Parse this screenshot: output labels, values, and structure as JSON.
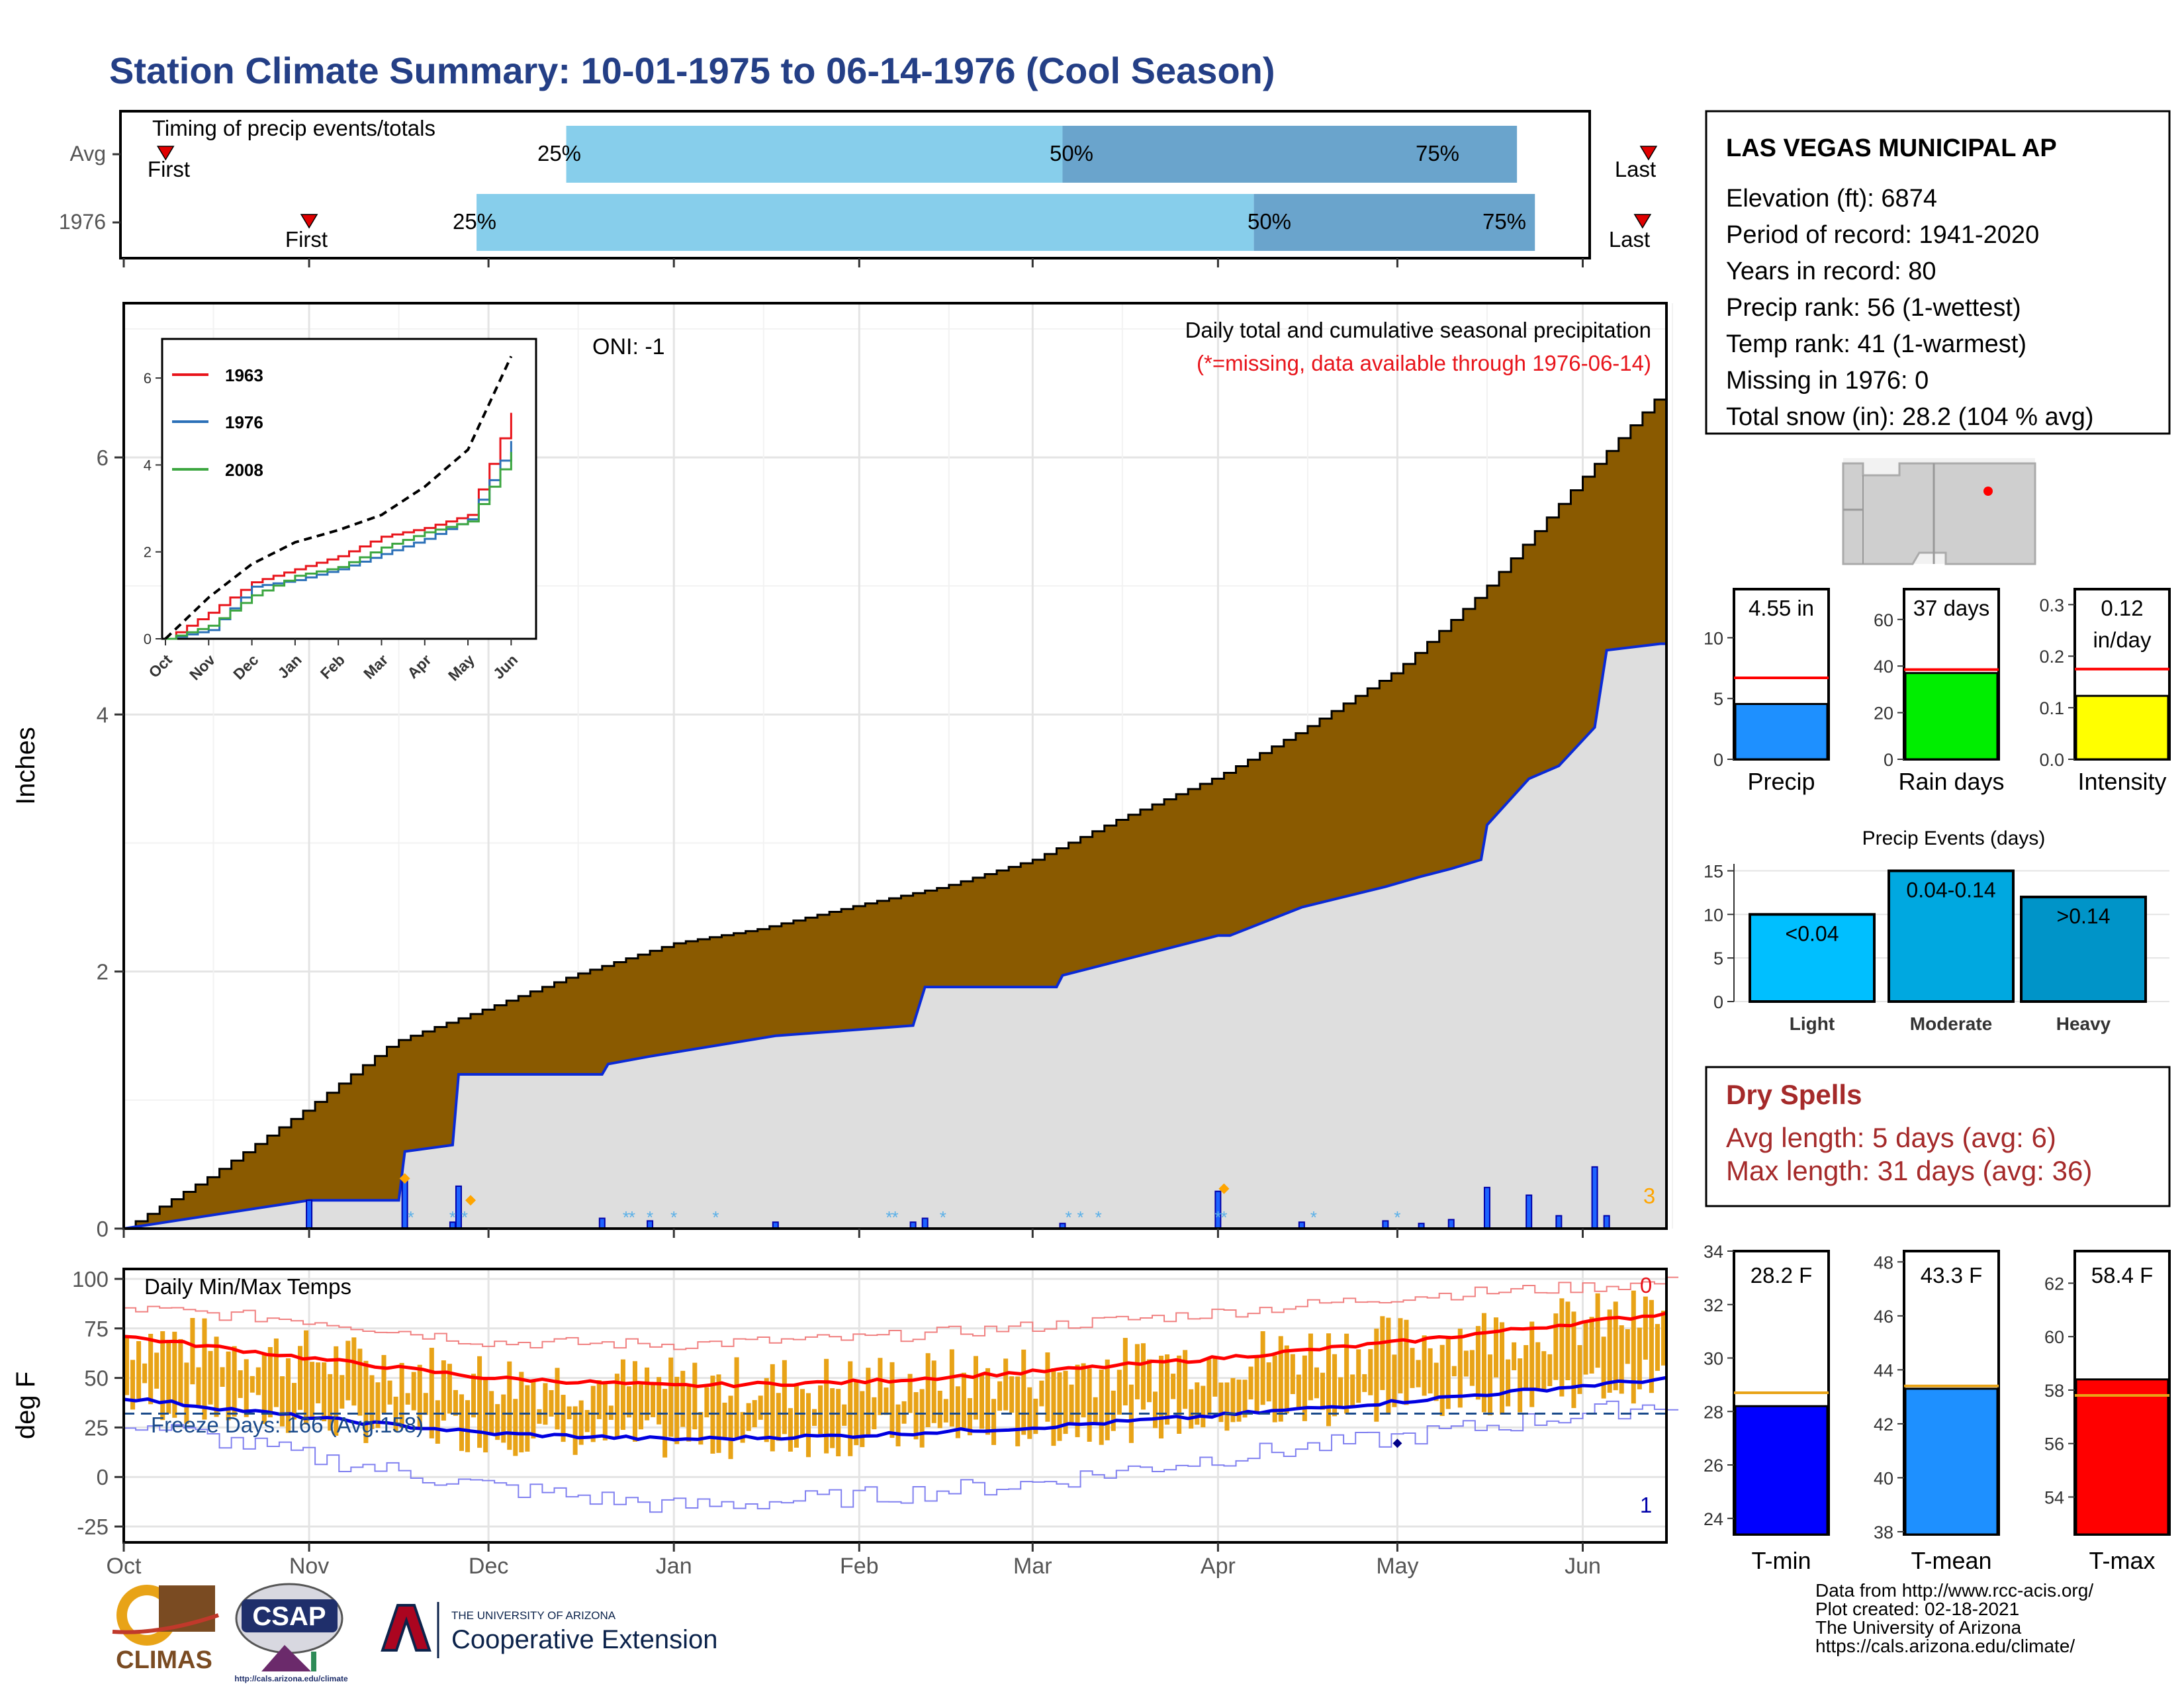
{
  "title": "Station Climate Summary: 10-01-1975 to 06-14-1976 (Cool Season)",
  "colors": {
    "title": "#243f86",
    "red": "#e8141b",
    "blue": "#0a2ad6",
    "brown": "#8a5a00",
    "gray": "#dedede",
    "lightblue": "#87ceeb",
    "midblue": "#6aa4cc",
    "orange": "#e8a317",
    "green": "#00ee00",
    "yellow": "#ffff00",
    "dryred": "#a52a2a"
  },
  "timing": {
    "title": "Timing of precip events/totals",
    "rows": [
      {
        "label": "Avg",
        "first": "First",
        "last": "Last",
        "p25": "25%",
        "p50": "50%",
        "p75": "75%",
        "first_date": "1975-10-08",
        "q25": "1975-12-14",
        "q50": "1976-03-06",
        "q75": "1976-05-21",
        "last_date": "1976-06-12"
      },
      {
        "label": "1976",
        "first": "First",
        "last": "Last",
        "p25": "25%",
        "p50": "50%",
        "p75": "75%",
        "first_date": "1975-11-01",
        "q25": "1975-11-29",
        "q50": "1976-04-07",
        "q75": "1976-05-24",
        "last_date": "1976-06-11"
      }
    ]
  },
  "precip_panel": {
    "ylabel": "Inches",
    "oni": "ONI: -1",
    "subtitle": "Daily total and cumulative seasonal precipitation",
    "missing_note": "(*=missing, data available through 1976-06-14)",
    "corner_count": "3",
    "yticks": [
      "0",
      "2",
      "4",
      "6"
    ]
  },
  "inset": {
    "yticks": [
      "0",
      "2",
      "4",
      "6"
    ],
    "xticks": [
      "Oct",
      "Nov",
      "Dec",
      "Jan",
      "Feb",
      "Mar",
      "Apr",
      "May",
      "Jun"
    ],
    "legend": [
      "1963",
      "1976",
      "2008"
    ]
  },
  "temp_panel": {
    "ylabel": "deg F",
    "title": "Daily Min/Max Temps",
    "freeze": "Freeze Days: 166 (Avg:158)",
    "top_count": "0",
    "bottom_count": "1",
    "yticks": [
      "100",
      "75",
      "50",
      "25",
      "0",
      "-25"
    ]
  },
  "months": [
    "Oct",
    "Nov",
    "Dec",
    "Jan",
    "Feb",
    "Mar",
    "Apr",
    "May",
    "Jun"
  ],
  "station": {
    "name": "LAS VEGAS MUNICIPAL AP",
    "lines": [
      "Elevation (ft): 6874",
      "Period of record: 1941-2020",
      "Years in record: 80",
      "Precip rank: 56 (1-wettest)",
      "Temp rank: 41 (1-warmest)",
      "Missing in 1976: 0",
      "Total snow (in): 28.2 (104 % avg)"
    ]
  },
  "summary_bars": [
    {
      "label": "Precip",
      "value_text": "4.55 in",
      "value": 4.55,
      "avg": 6.7,
      "ymax": 14,
      "ticks": [
        "0",
        "5",
        "10"
      ],
      "tickvals": [
        0,
        5,
        10
      ],
      "color": "#1e90ff"
    },
    {
      "label": "Rain days",
      "value_text": "37 days",
      "value": 37,
      "avg": 38.5,
      "ymax": 73,
      "ticks": [
        "0",
        "20",
        "40",
        "60"
      ],
      "tickvals": [
        0,
        20,
        40,
        60
      ],
      "color": "#00ee00"
    },
    {
      "label": "Intensity",
      "value_text": "0.12 in/day",
      "value": 0.123,
      "avg": 0.175,
      "ymax": 0.33,
      "ticks": [
        "0.0",
        "0.1",
        "0.2",
        "0.3"
      ],
      "tickvals": [
        0,
        0.1,
        0.2,
        0.3
      ],
      "color": "#ffff00"
    }
  ],
  "events": {
    "title": "Precip Events (days)",
    "categories": [
      "Light",
      "Moderate",
      "Heavy"
    ],
    "labels": [
      "<0.04",
      "0.04-0.14",
      ">0.14"
    ],
    "values": [
      10,
      15,
      12
    ],
    "colors": [
      "#00bfff",
      "#00a8e0",
      "#0094c8"
    ],
    "ticks": [
      "0",
      "5",
      "10",
      "15"
    ]
  },
  "dry_spells": {
    "title": "Dry Spells",
    "avg": "Avg length: 5 days (avg: 6)",
    "max": "Max length: 31 days (avg: 36)"
  },
  "temp_bars": [
    {
      "label": "T-min",
      "value_text": "28.2 F",
      "value": 28.2,
      "avg": 28.7,
      "ymin": 23.4,
      "ymax": 34.0,
      "ticks": [
        "24",
        "26",
        "28",
        "30",
        "32",
        "34"
      ],
      "tickvals": [
        24,
        26,
        28,
        30,
        32,
        34
      ],
      "color": "#0000ff"
    },
    {
      "label": "T-mean",
      "value_text": "43.3 F",
      "value": 43.3,
      "avg": 43.4,
      "ymin": 37.9,
      "ymax": 48.4,
      "ticks": [
        "38",
        "40",
        "42",
        "44",
        "46",
        "48"
      ],
      "tickvals": [
        38,
        40,
        42,
        44,
        46,
        48
      ],
      "color": "#1e90ff"
    },
    {
      "label": "T-max",
      "value_text": "58.4 F",
      "value": 58.4,
      "avg": 57.8,
      "ymin": 52.6,
      "ymax": 63.2,
      "ticks": [
        "54",
        "56",
        "58",
        "60",
        "62"
      ],
      "tickvals": [
        54,
        56,
        58,
        60,
        62
      ],
      "color": "#ff0000"
    }
  ],
  "footer": {
    "credits": [
      "Data from http://www.rcc-acis.org/",
      "Plot created: 02-18-2021",
      "The University of Arizona",
      "https://cals.arizona.edu/climate/"
    ],
    "climas": "CLIMAS",
    "csap": "CSAP",
    "csap_url": "http://cals.arizona.edu/climate",
    "ua_small": "THE UNIVERSITY OF ARIZONA",
    "ua_big": "Cooperative Extension"
  },
  "chart_data": {
    "type": "area",
    "title": "Station Climate Summary: 10-01-1975 to 06-14-1976 (Cool Season)",
    "ylabel": "Inches",
    "xlim": [
      "1975-10-01",
      "1976-06-14"
    ],
    "ylim": [
      0,
      7.2
    ],
    "series": [
      {
        "name": "avg cumulative (brown)",
        "x": [
          "1975-10-01",
          "1975-10-15",
          "1975-11-01",
          "1975-11-15",
          "1975-12-01",
          "1975-12-15",
          "1976-01-01",
          "1976-01-15",
          "1976-02-01",
          "1976-02-15",
          "1976-03-01",
          "1976-03-15",
          "1976-04-01",
          "1976-04-15",
          "1976-05-01",
          "1976-05-15",
          "1976-06-01",
          "1976-06-14"
        ],
        "values": [
          0,
          0.4,
          0.95,
          1.45,
          1.72,
          1.97,
          2.22,
          2.33,
          2.52,
          2.66,
          2.87,
          3.18,
          3.52,
          3.88,
          4.35,
          4.95,
          5.85,
          6.5
        ]
      },
      {
        "name": "1976 cumulative",
        "x": [
          "1975-10-01",
          "1975-11-01",
          "1975-11-16",
          "1975-11-17",
          "1975-11-25",
          "1975-11-26",
          "1975-12-20",
          "1975-12-21",
          "1975-12-28",
          "1976-01-18",
          "1976-02-10",
          "1976-02-12",
          "1976-03-05",
          "1976-03-06",
          "1976-04-01",
          "1976-04-03",
          "1976-04-15",
          "1976-04-29",
          "1976-05-05",
          "1976-05-10",
          "1976-05-15",
          "1976-05-16",
          "1976-05-23",
          "1976-05-28",
          "1976-06-03",
          "1976-06-05",
          "1976-06-14"
        ],
        "values": [
          0,
          0.22,
          0.22,
          0.6,
          0.65,
          1.2,
          1.2,
          1.28,
          1.34,
          1.5,
          1.58,
          1.88,
          1.88,
          1.97,
          2.28,
          2.28,
          2.5,
          2.66,
          2.74,
          2.8,
          2.87,
          3.14,
          3.5,
          3.6,
          3.9,
          4.5,
          4.55
        ]
      }
    ],
    "daily_precip": {
      "dates": [
        "1975-11-01",
        "1975-11-17",
        "1975-11-25",
        "1975-11-26",
        "1975-12-20",
        "1975-12-28",
        "1976-01-18",
        "1976-02-10",
        "1976-02-12",
        "1976-03-06",
        "1976-04-01",
        "1976-04-15",
        "1976-04-29",
        "1976-05-05",
        "1976-05-10",
        "1976-05-16",
        "1976-05-23",
        "1976-05-28",
        "1976-06-03",
        "1976-06-05"
      ],
      "values": [
        0.22,
        0.38,
        0.05,
        0.33,
        0.08,
        0.06,
        0.05,
        0.05,
        0.08,
        0.04,
        0.29,
        0.05,
        0.06,
        0.04,
        0.07,
        0.32,
        0.26,
        0.1,
        0.48,
        0.1
      ]
    },
    "temp_normals": {
      "x_months": [
        "Oct",
        "Nov",
        "Dec",
        "Jan",
        "Feb",
        "Mar",
        "Apr",
        "May",
        "Jun"
      ],
      "avg_max": [
        71,
        60,
        50,
        46,
        48,
        53,
        60,
        68,
        78
      ],
      "avg_min": [
        40,
        30,
        22,
        19,
        21,
        25,
        31,
        38,
        46
      ],
      "record_max": [
        85,
        79,
        68,
        67,
        70,
        76,
        83,
        91,
        96
      ],
      "record_min": [
        28,
        10,
        -5,
        -15,
        -10,
        -3,
        10,
        20,
        32
      ],
      "freeze_line": 32
    },
    "inset": {
      "type": "line",
      "xticks": [
        "Oct",
        "Nov",
        "Dec",
        "Jan",
        "Feb",
        "Mar",
        "Apr",
        "May",
        "Jun"
      ],
      "series": [
        {
          "name": "1963",
          "values": [
            0,
            0.6,
            1.3,
            1.6,
            1.9,
            2.35,
            2.55,
            2.85,
            5.2
          ]
        },
        {
          "name": "1976",
          "values": [
            0,
            0.2,
            1.2,
            1.35,
            1.6,
            1.95,
            2.3,
            2.75,
            4.55
          ]
        },
        {
          "name": "2008",
          "values": [
            0,
            0.3,
            1.0,
            1.45,
            1.65,
            2.1,
            2.45,
            2.7,
            4.3
          ]
        },
        {
          "name": "avg",
          "values": [
            0,
            0.95,
            1.72,
            2.22,
            2.5,
            2.85,
            3.5,
            4.35,
            6.5
          ]
        }
      ]
    }
  }
}
